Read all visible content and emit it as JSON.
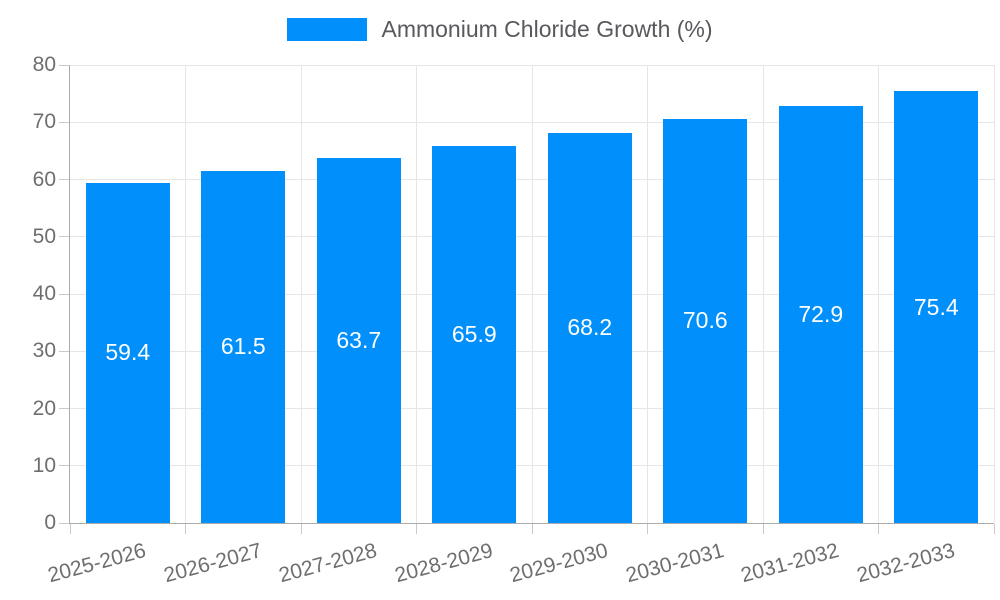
{
  "chart_data": {
    "type": "bar",
    "title": "Ammonium Chloride Growth (%)",
    "categories": [
      "2025-2026",
      "2026-2027",
      "2027-2028",
      "2028-2029",
      "2029-2030",
      "2030-2031",
      "2031-2032",
      "2032-2033"
    ],
    "values": [
      59.4,
      61.5,
      63.7,
      65.9,
      68.2,
      70.6,
      72.9,
      75.4
    ],
    "value_labels": [
      "59.4",
      "61.5",
      "63.7",
      "65.9",
      "68.2",
      "70.6",
      "72.9",
      "75.4"
    ],
    "xlabel": "",
    "ylabel": "",
    "ylim": [
      0,
      80
    ],
    "ytick_labels": [
      "0",
      "10",
      "20",
      "30",
      "40",
      "50",
      "60",
      "70",
      "80"
    ],
    "grid": "on",
    "legend_position": "top",
    "colors": {
      "bar": "#008FFB",
      "grid": "#E6E6E6",
      "axis_line": "#ABABAB",
      "tick": "#C9C9C9",
      "axis_text": "#6E6E6E",
      "legend_text": "#58595C",
      "value_label": "#FFFFFF"
    }
  }
}
